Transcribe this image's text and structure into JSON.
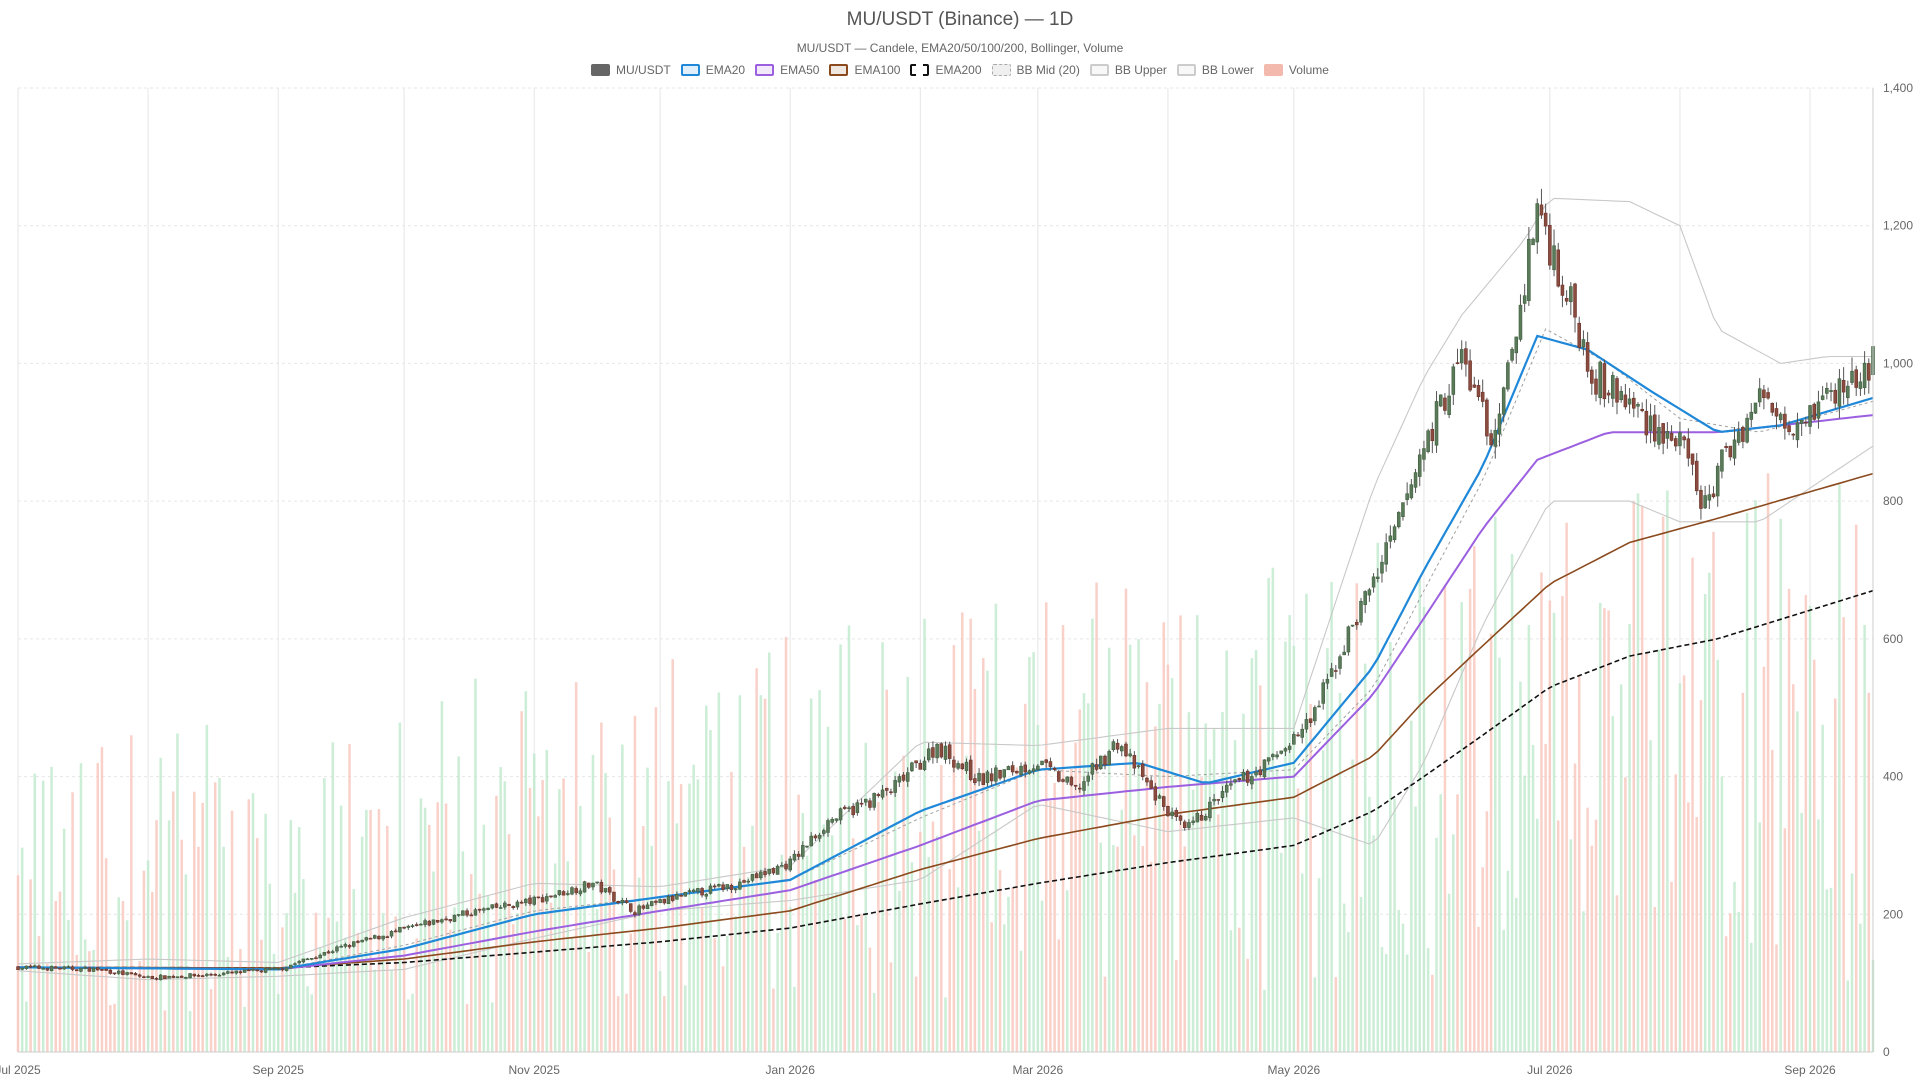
{
  "chart_data": {
    "type": "candlestick",
    "title": "MU/USDT (Binance) — 1D",
    "subtitle": "MU/USDT — Candele, EMA20/50/100/200, Bollinger, Volume",
    "y_axis": {
      "ticks": [
        "0",
        "200",
        "400",
        "600",
        "800",
        "1,000",
        "1,200",
        "1,400"
      ],
      "ylim": [
        0,
        1400
      ],
      "position": "right"
    },
    "x_axis": {
      "ticks": [
        "Jul 2025",
        "Sep 2025",
        "Nov 2025",
        "Jan 2026",
        "Mar 2026",
        "May 2026",
        "Jul 2026",
        "Sep 2026"
      ]
    },
    "x_range": [
      "2025-07-01",
      "2026-09-16"
    ],
    "legend": [
      {
        "name": "MU/USDT",
        "color": "#666666",
        "style": "filled"
      },
      {
        "name": "EMA20",
        "color": "#1f88d8",
        "style": "line"
      },
      {
        "name": "EMA50",
        "color": "#9b5fe0",
        "style": "line"
      },
      {
        "name": "EMA100",
        "color": "#8b4a1e",
        "style": "line"
      },
      {
        "name": "EMA200",
        "color": "#111111",
        "style": "dashed"
      },
      {
        "name": "BB Mid (20)",
        "color": "#aaaaaa",
        "style": "dotted"
      },
      {
        "name": "BB Upper",
        "color": "#cccccc",
        "style": "line"
      },
      {
        "name": "BB Lower",
        "color": "#cccccc",
        "style": "line"
      },
      {
        "name": "Volume",
        "color": "#f4b9ad",
        "style": "filled"
      }
    ],
    "colors": {
      "up": "#2e7d32",
      "down": "#c62828",
      "candle_body": "#666666",
      "vol_up": "#bfe9cc",
      "vol_down": "#f7c6bb",
      "grid": "#e6e6e6"
    },
    "close_keypoints": [
      [
        "2025-07-01",
        123
      ],
      [
        "2025-07-20",
        120
      ],
      [
        "2025-08-01",
        108
      ],
      [
        "2025-08-15",
        112
      ],
      [
        "2025-09-01",
        120
      ],
      [
        "2025-09-15",
        150
      ],
      [
        "2025-10-01",
        178
      ],
      [
        "2025-10-15",
        200
      ],
      [
        "2025-11-01",
        220
      ],
      [
        "2025-11-15",
        245
      ],
      [
        "2025-11-25",
        205
      ],
      [
        "2025-12-05",
        225
      ],
      [
        "2025-12-20",
        245
      ],
      [
        "2026-01-01",
        275
      ],
      [
        "2026-01-10",
        335
      ],
      [
        "2026-01-25",
        380
      ],
      [
        "2026-02-05",
        445
      ],
      [
        "2026-02-15",
        395
      ],
      [
        "2026-03-01",
        420
      ],
      [
        "2026-03-10",
        380
      ],
      [
        "2026-03-20",
        450
      ],
      [
        "2026-03-28",
        380
      ],
      [
        "2026-04-05",
        320
      ],
      [
        "2026-04-15",
        380
      ],
      [
        "2026-04-25",
        420
      ],
      [
        "2026-05-05",
        480
      ],
      [
        "2026-05-15",
        620
      ],
      [
        "2026-05-25",
        750
      ],
      [
        "2026-06-01",
        880
      ],
      [
        "2026-06-10",
        1010
      ],
      [
        "2026-06-18",
        880
      ],
      [
        "2026-06-25",
        1120
      ],
      [
        "2026-06-28",
        1230
      ],
      [
        "2026-07-05",
        1100
      ],
      [
        "2026-07-12",
        980
      ],
      [
        "2026-07-20",
        940
      ],
      [
        "2026-08-01",
        880
      ],
      [
        "2026-08-07",
        790
      ],
      [
        "2026-08-12",
        870
      ],
      [
        "2026-08-20",
        950
      ],
      [
        "2026-08-28",
        920
      ],
      [
        "2026-09-05",
        950
      ],
      [
        "2026-09-12",
        980
      ],
      [
        "2026-09-16",
        1000
      ]
    ],
    "ema_keypoints": {
      "EMA20": [
        [
          "2025-07-01",
          123
        ],
        [
          "2025-09-01",
          120
        ],
        [
          "2025-10-01",
          150
        ],
        [
          "2025-11-01",
          200
        ],
        [
          "2025-12-01",
          225
        ],
        [
          "2026-01-01",
          250
        ],
        [
          "2026-02-01",
          350
        ],
        [
          "2026-03-01",
          410
        ],
        [
          "2026-03-25",
          420
        ],
        [
          "2026-04-10",
          390
        ],
        [
          "2026-05-01",
          420
        ],
        [
          "2026-05-20",
          560
        ],
        [
          "2026-06-01",
          700
        ],
        [
          "2026-06-15",
          850
        ],
        [
          "2026-06-28",
          1040
        ],
        [
          "2026-07-10",
          1020
        ],
        [
          "2026-07-25",
          960
        ],
        [
          "2026-08-10",
          900
        ],
        [
          "2026-08-25",
          910
        ],
        [
          "2026-09-16",
          950
        ]
      ],
      "EMA50": [
        [
          "2025-07-01",
          123
        ],
        [
          "2025-09-01",
          120
        ],
        [
          "2025-10-01",
          140
        ],
        [
          "2025-11-01",
          175
        ],
        [
          "2025-12-01",
          205
        ],
        [
          "2026-01-01",
          235
        ],
        [
          "2026-02-01",
          300
        ],
        [
          "2026-03-01",
          365
        ],
        [
          "2026-04-01",
          385
        ],
        [
          "2026-05-01",
          400
        ],
        [
          "2026-05-20",
          520
        ],
        [
          "2026-06-01",
          630
        ],
        [
          "2026-06-15",
          760
        ],
        [
          "2026-06-28",
          860
        ],
        [
          "2026-07-15",
          900
        ],
        [
          "2026-08-10",
          900
        ],
        [
          "2026-09-16",
          925
        ]
      ],
      "EMA100": [
        [
          "2025-07-01",
          123
        ],
        [
          "2025-09-01",
          122
        ],
        [
          "2025-10-01",
          135
        ],
        [
          "2025-11-01",
          160
        ],
        [
          "2025-12-01",
          180
        ],
        [
          "2026-01-01",
          205
        ],
        [
          "2026-02-01",
          265
        ],
        [
          "2026-03-01",
          310
        ],
        [
          "2026-04-01",
          345
        ],
        [
          "2026-05-01",
          370
        ],
        [
          "2026-05-20",
          430
        ],
        [
          "2026-06-01",
          510
        ],
        [
          "2026-06-15",
          590
        ],
        [
          "2026-07-01",
          680
        ],
        [
          "2026-07-20",
          740
        ],
        [
          "2026-08-10",
          775
        ],
        [
          "2026-09-16",
          840
        ]
      ],
      "EMA200": [
        [
          "2025-07-01",
          123
        ],
        [
          "2025-09-01",
          122
        ],
        [
          "2025-10-01",
          130
        ],
        [
          "2025-11-01",
          145
        ],
        [
          "2025-12-01",
          160
        ],
        [
          "2026-01-01",
          180
        ],
        [
          "2026-02-01",
          215
        ],
        [
          "2026-03-01",
          245
        ],
        [
          "2026-04-01",
          275
        ],
        [
          "2026-05-01",
          300
        ],
        [
          "2026-05-20",
          350
        ],
        [
          "2026-06-01",
          400
        ],
        [
          "2026-06-15",
          460
        ],
        [
          "2026-07-01",
          530
        ],
        [
          "2026-07-20",
          575
        ],
        [
          "2026-08-10",
          600
        ],
        [
          "2026-09-16",
          670
        ]
      ]
    },
    "bb_keypoints": {
      "BB Upper": [
        [
          "2025-07-01",
          128
        ],
        [
          "2025-08-01",
          135
        ],
        [
          "2025-09-01",
          130
        ],
        [
          "2025-10-01",
          195
        ],
        [
          "2025-11-01",
          245
        ],
        [
          "2025-12-01",
          240
        ],
        [
          "2026-01-01",
          270
        ],
        [
          "2026-02-01",
          450
        ],
        [
          "2026-03-01",
          445
        ],
        [
          "2026-04-01",
          470
        ],
        [
          "2026-05-01",
          470
        ],
        [
          "2026-05-20",
          820
        ],
        [
          "2026-06-01",
          980
        ],
        [
          "2026-06-10",
          1070
        ],
        [
          "2026-06-25",
          1180
        ],
        [
          "2026-07-01",
          1240
        ],
        [
          "2026-07-20",
          1235
        ],
        [
          "2026-08-01",
          1200
        ],
        [
          "2026-08-10",
          1050
        ],
        [
          "2026-08-25",
          1000
        ],
        [
          "2026-09-05",
          1010
        ],
        [
          "2026-09-16",
          1010
        ]
      ],
      "BB Mid (20)": [
        [
          "2025-07-01",
          123
        ],
        [
          "2025-09-01",
          120
        ],
        [
          "2025-10-01",
          155
        ],
        [
          "2025-11-01",
          205
        ],
        [
          "2025-12-01",
          225
        ],
        [
          "2026-01-01",
          250
        ],
        [
          "2026-02-01",
          340
        ],
        [
          "2026-03-01",
          410
        ],
        [
          "2026-04-01",
          400
        ],
        [
          "2026-05-01",
          410
        ],
        [
          "2026-05-20",
          530
        ],
        [
          "2026-06-01",
          670
        ],
        [
          "2026-06-15",
          830
        ],
        [
          "2026-06-30",
          1050
        ],
        [
          "2026-07-15",
          1000
        ],
        [
          "2026-08-01",
          920
        ],
        [
          "2026-08-20",
          900
        ],
        [
          "2026-09-16",
          945
        ]
      ],
      "BB Lower": [
        [
          "2025-07-01",
          118
        ],
        [
          "2025-08-01",
          105
        ],
        [
          "2025-09-01",
          110
        ],
        [
          "2025-10-01",
          120
        ],
        [
          "2025-11-01",
          165
        ],
        [
          "2025-12-01",
          205
        ],
        [
          "2026-01-01",
          220
        ],
        [
          "2026-02-01",
          250
        ],
        [
          "2026-03-01",
          360
        ],
        [
          "2026-04-01",
          320
        ],
        [
          "2026-05-01",
          340
        ],
        [
          "2026-05-20",
          300
        ],
        [
          "2026-06-01",
          420
        ],
        [
          "2026-06-15",
          620
        ],
        [
          "2026-07-01",
          800
        ],
        [
          "2026-07-20",
          800
        ],
        [
          "2026-08-01",
          770
        ],
        [
          "2026-08-20",
          770
        ],
        [
          "2026-09-16",
          880
        ]
      ]
    }
  }
}
